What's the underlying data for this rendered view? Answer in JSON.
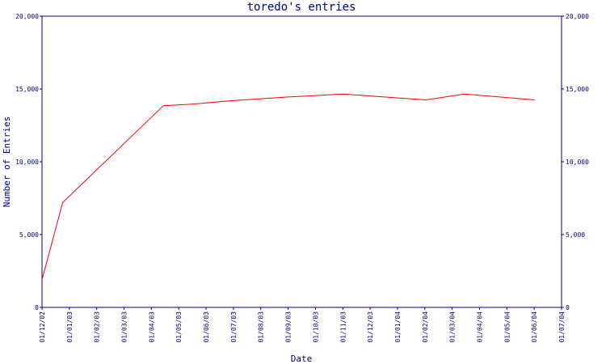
{
  "chart_data": {
    "type": "line",
    "title": "toredo's entries",
    "xlabel": "Date",
    "ylabel": "Number of Entries",
    "ylim": [
      0,
      20000
    ],
    "y_ticks": [
      0,
      5000,
      10000,
      15000,
      20000
    ],
    "y_tick_labels": [
      "0",
      "5,000",
      "10,000",
      "15,000",
      "20,000"
    ],
    "x_range": [
      "2002-12-01",
      "2004-07-01"
    ],
    "x_tick_labels": [
      "01/12/02",
      "01/01/03",
      "01/02/03",
      "01/03/03",
      "01/04/03",
      "01/05/03",
      "01/06/03",
      "01/07/03",
      "01/08/03",
      "01/09/03",
      "01/10/03",
      "01/11/03",
      "01/12/03",
      "01/01/04",
      "01/02/04",
      "01/03/04",
      "01/04/04",
      "01/05/04",
      "01/06/04",
      "01/07/04"
    ],
    "grid": false,
    "right_axis": true,
    "series": [
      {
        "color": "#ff0000",
        "points": [
          {
            "x": "2002-12-01",
            "y": 1900
          },
          {
            "x": "2002-12-24",
            "y": 7200
          },
          {
            "x": "2003-04-15",
            "y": 13850
          },
          {
            "x": "2003-05-15",
            "y": 13950
          },
          {
            "x": "2003-07-01",
            "y": 14200
          },
          {
            "x": "2003-09-01",
            "y": 14450
          },
          {
            "x": "2003-11-01",
            "y": 14650
          },
          {
            "x": "2004-02-01",
            "y": 14250
          },
          {
            "x": "2004-03-15",
            "y": 14650
          },
          {
            "x": "2004-06-01",
            "y": 14250
          }
        ]
      }
    ]
  }
}
